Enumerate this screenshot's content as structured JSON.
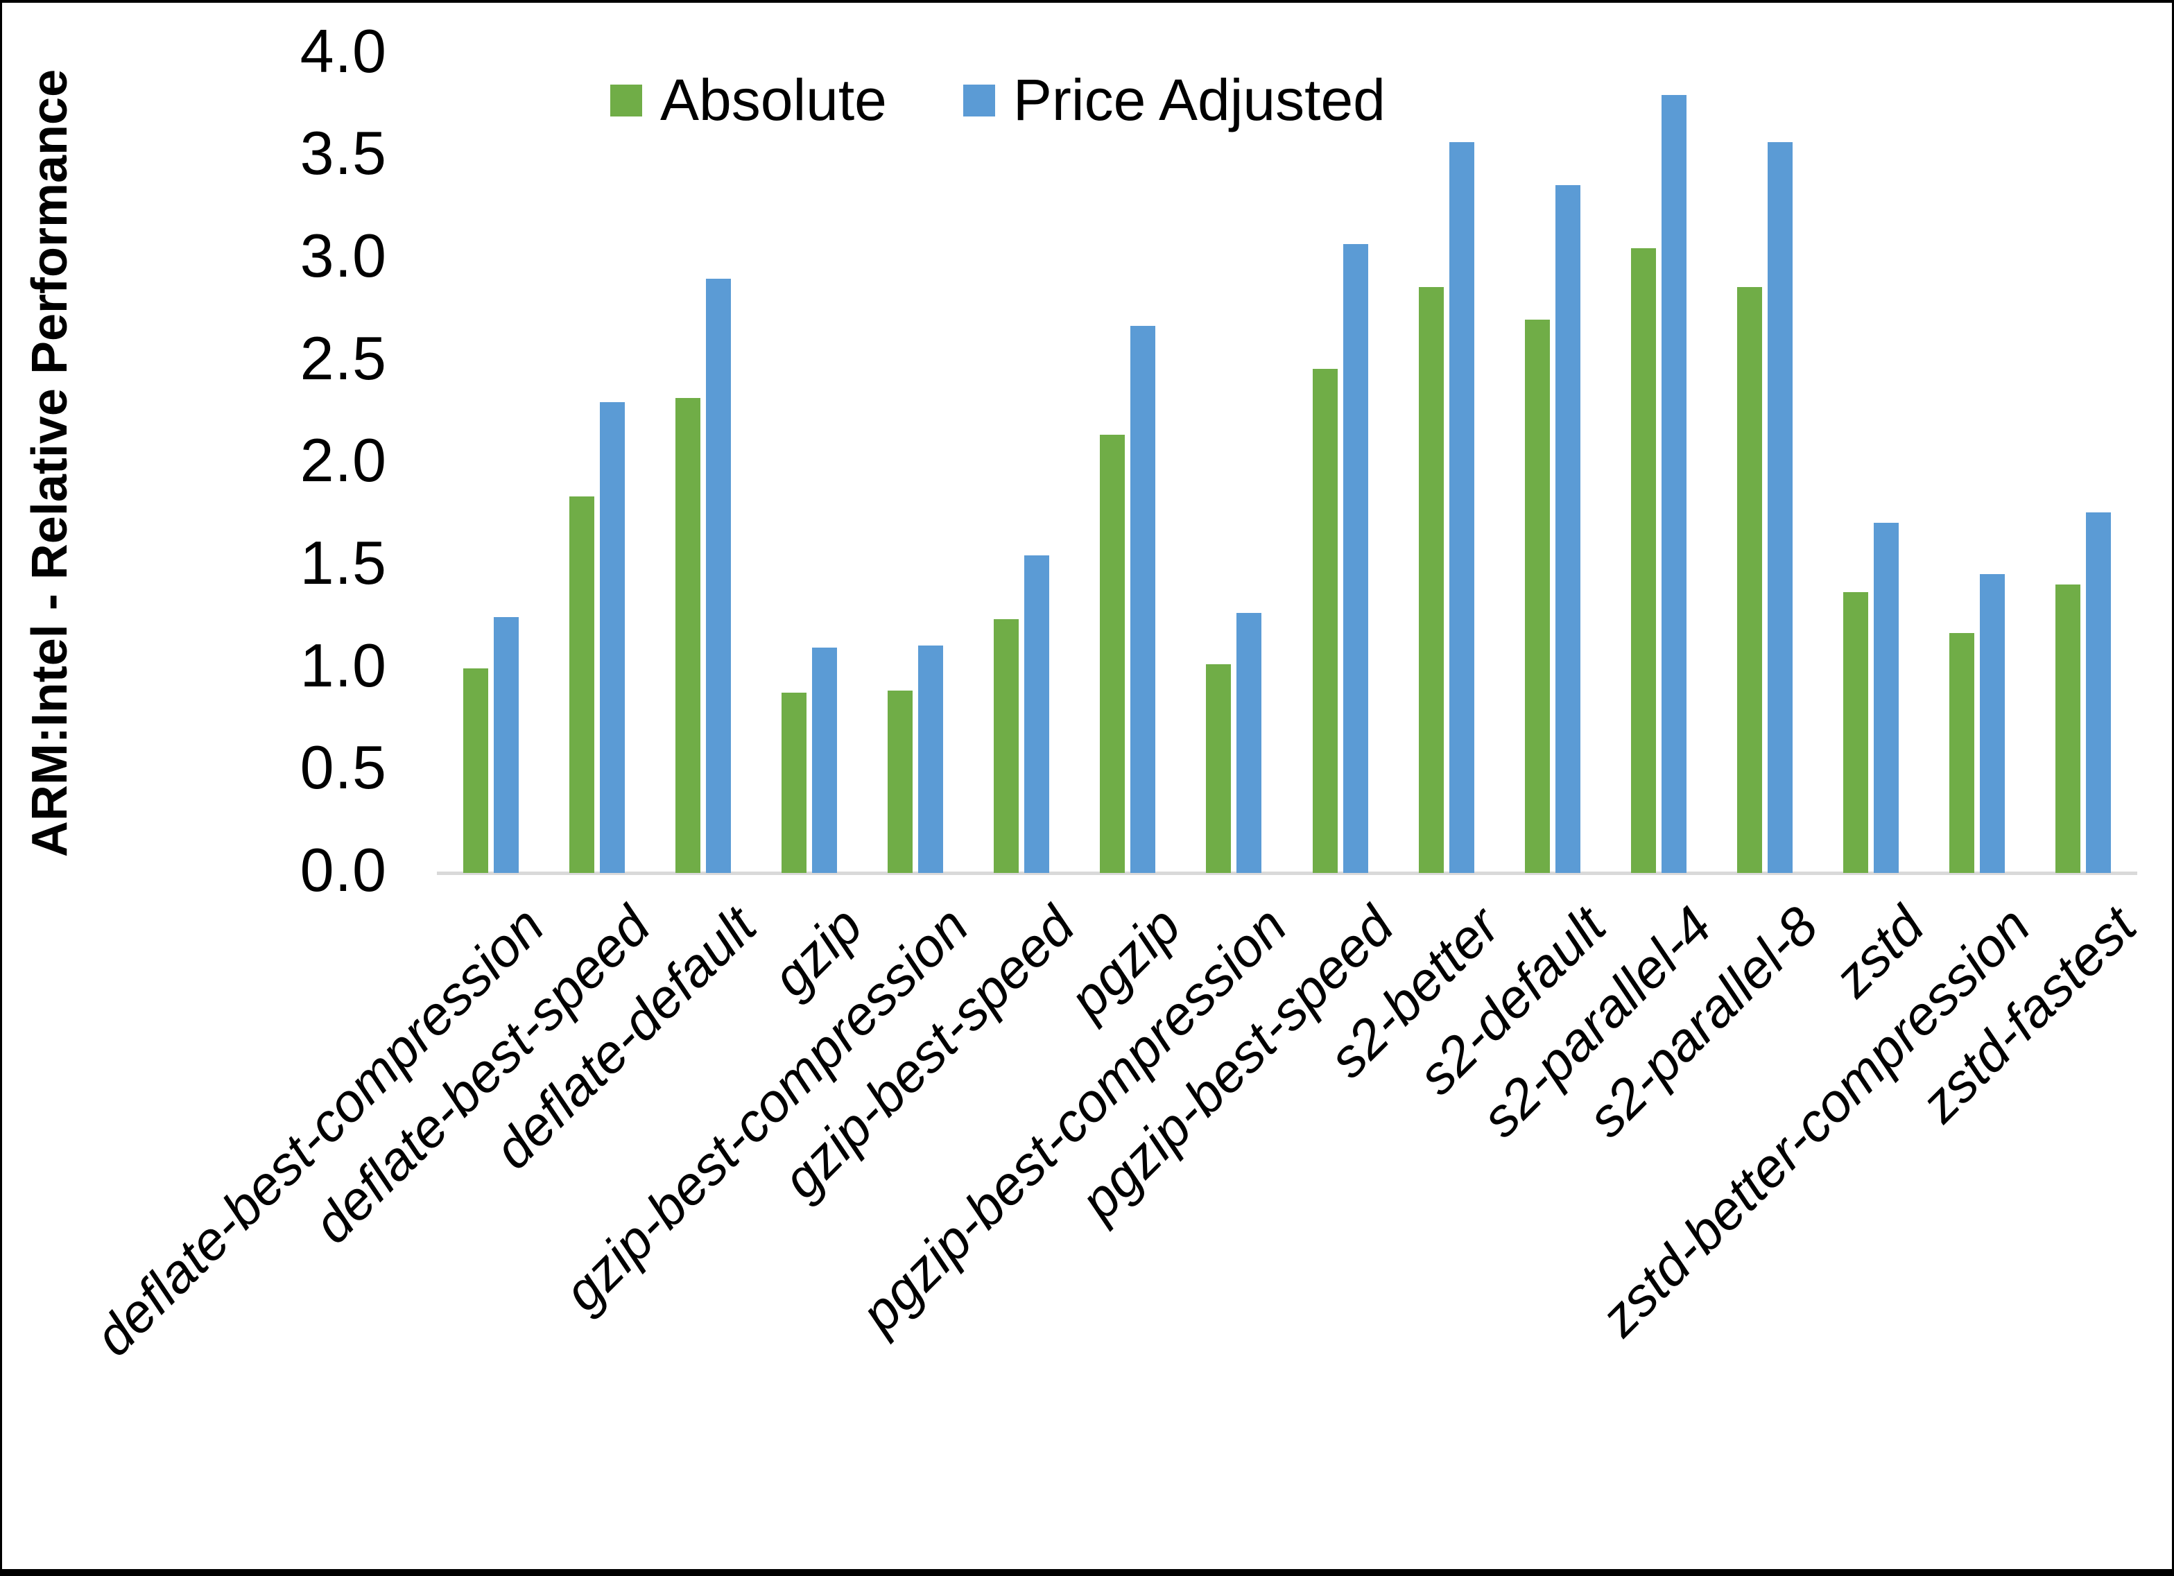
{
  "chart_data": {
    "type": "bar",
    "title": "",
    "ylabel": "ARM:Intel - Relative Performance",
    "xlabel": "",
    "ylim": [
      0.0,
      4.0
    ],
    "ytick_step": 0.5,
    "ytick_labels": [
      "4.0",
      "3.5",
      "3.0",
      "2.5",
      "2.0",
      "1.5",
      "1.0",
      "0.5",
      "0.0"
    ],
    "grid": false,
    "legend_position": "top-center",
    "categories": [
      "deflate-best-compression",
      "deflate-best-speed",
      "deflate-default",
      "gzip",
      "gzip-best-compression",
      "gzip-best-speed",
      "pgzip",
      "pgzip-best-compression",
      "pgzip-best-speed",
      "s2-better",
      "s2-default",
      "s2-parallel-4",
      "s2-parallel-8",
      "zstd",
      "zstd-better-compression",
      "zstd-fastest"
    ],
    "series": [
      {
        "name": "Absolute",
        "color": "#70AD47",
        "values": [
          1.0,
          1.84,
          2.32,
          0.88,
          0.89,
          1.24,
          2.14,
          1.02,
          2.46,
          2.86,
          2.7,
          3.05,
          2.86,
          1.37,
          1.17,
          1.41
        ]
      },
      {
        "name": "Price Adjusted",
        "color": "#5B9BD5",
        "values": [
          1.25,
          2.3,
          2.9,
          1.1,
          1.11,
          1.55,
          2.67,
          1.27,
          3.07,
          3.57,
          3.36,
          3.8,
          3.57,
          1.71,
          1.46,
          1.76
        ]
      }
    ]
  },
  "colors": {
    "axis_line": "#d9d9d9",
    "text": "#000000",
    "background": "#ffffff",
    "frame": "#000000"
  }
}
